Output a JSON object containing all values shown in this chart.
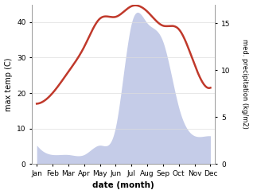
{
  "months": [
    "Jan",
    "Feb",
    "Mar",
    "Apr",
    "May",
    "Jun",
    "Jul",
    "Aug",
    "Sep",
    "Oct",
    "Nov",
    "Dec"
  ],
  "temp": [
    17,
    20,
    26,
    33,
    41,
    41.5,
    44.5,
    43,
    39,
    38,
    28,
    21.5
  ],
  "precip": [
    2,
    1,
    1,
    1,
    2,
    4,
    15,
    15,
    13,
    6,
    3,
    3
  ],
  "temp_color": "#c0392b",
  "precip_fill_color": "#c5cce8",
  "xlabel": "date (month)",
  "ylabel_left": "max temp (C)",
  "ylabel_right": "med. precipitation (kg/m2)",
  "ylim_left": [
    0,
    45
  ],
  "ylim_right": [
    0,
    17
  ],
  "yticks_left": [
    0,
    10,
    20,
    30,
    40
  ],
  "yticks_right": [
    0,
    5,
    10,
    15
  ],
  "bg_color": "#ffffff",
  "spine_color": "#999999",
  "figsize": [
    3.18,
    2.44
  ],
  "dpi": 100
}
